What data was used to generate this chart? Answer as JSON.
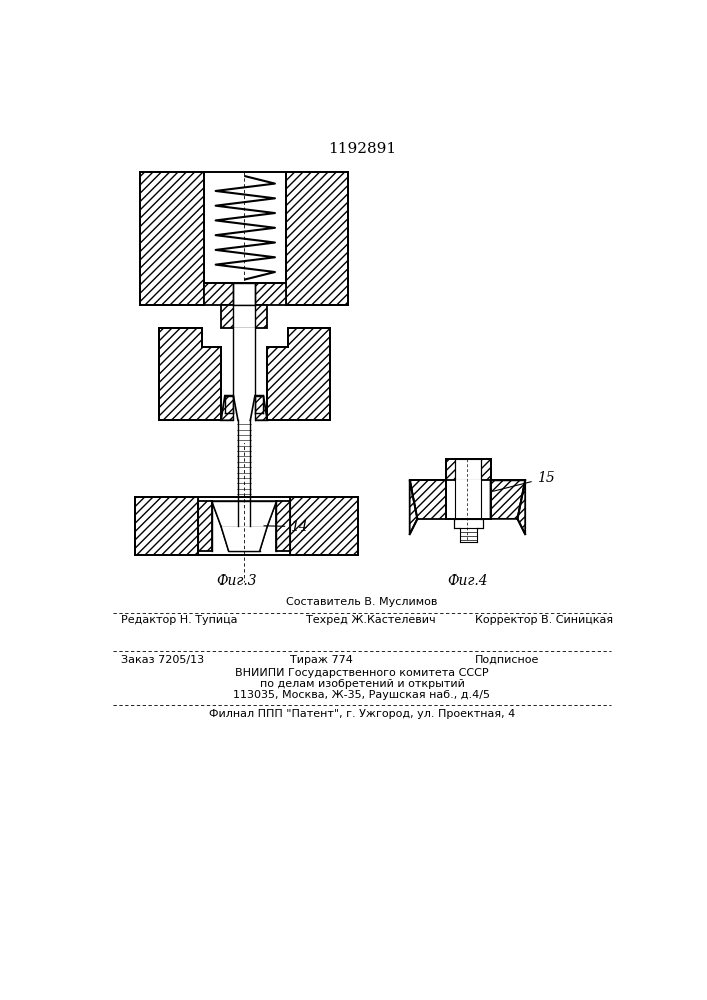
{
  "patent_number": "1192891",
  "bg": "#ffffff",
  "lc": "#000000",
  "fig3_label": "Фиг.3",
  "fig4_label": "Фиг.4",
  "label_14": "14",
  "label_15": "15",
  "footer": {
    "line1_center": "Составитель В. Муслимов",
    "line2_left": "Редактор Н. Тупица",
    "line2_center": "Техред Ж.Кастелевич",
    "line2_right": "Корректор В. Синицкая",
    "line3_left": "Заказ 7205/13",
    "line3_center": "Тираж 774",
    "line3_right": "Подписное",
    "line4": "ВНИИПИ Государственного комитета СССР",
    "line5": "по делам изобретений и открытий",
    "line6": "113035, Москва, Ж-35, Раушская наб., д.4/5",
    "line7": "Филнал ППП \"Патент\", г. Ужгород, ул. Проектная, 4"
  }
}
